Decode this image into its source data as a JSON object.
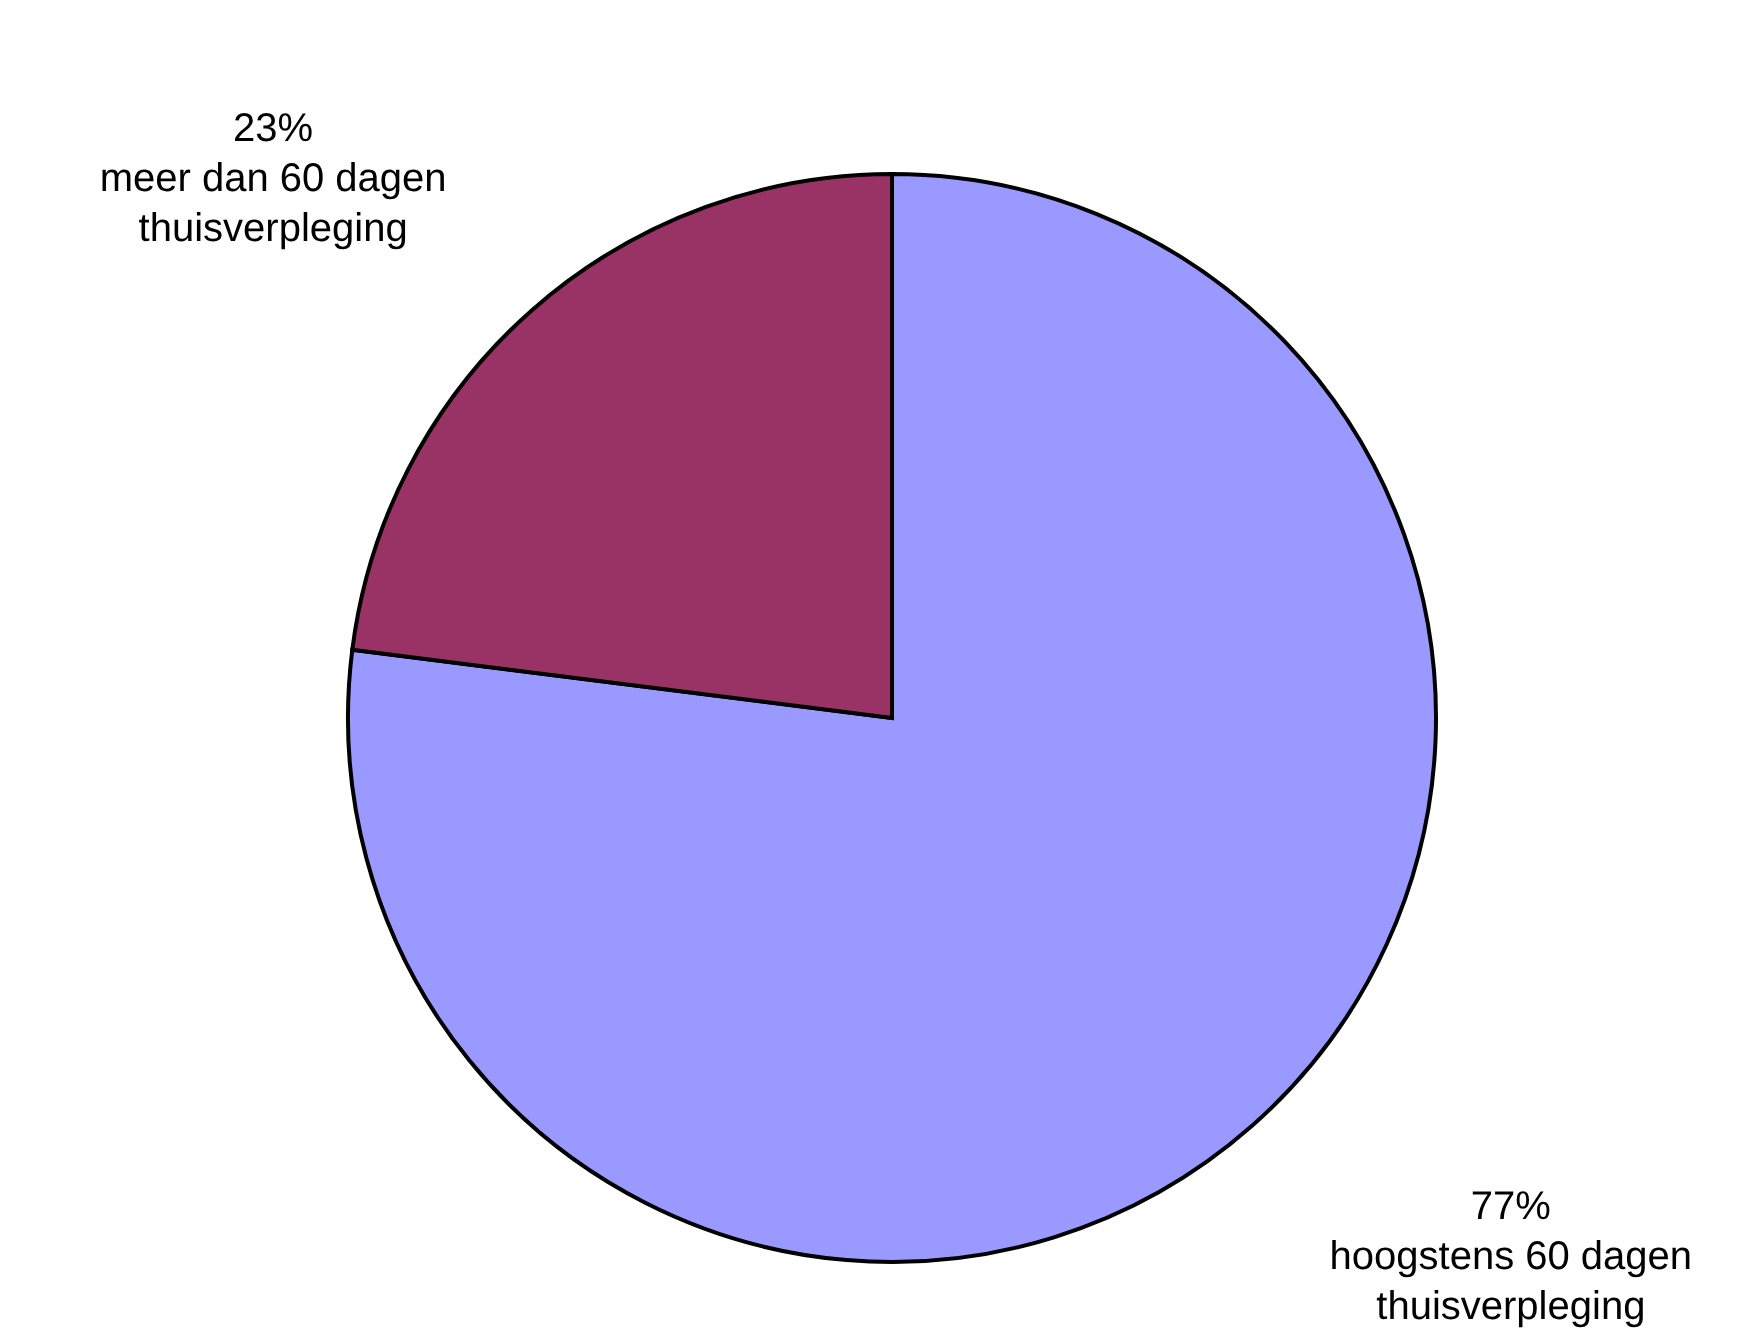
{
  "chart_data": {
    "type": "pie",
    "categories": [
      "hoogstens 60 dagen thuisverpleging",
      "meer dan 60 dagen thuisverpleging"
    ],
    "values": [
      77,
      23
    ],
    "colors": [
      "#9999ff",
      "#993366"
    ],
    "value_labels": [
      "77%",
      "23%"
    ]
  }
}
